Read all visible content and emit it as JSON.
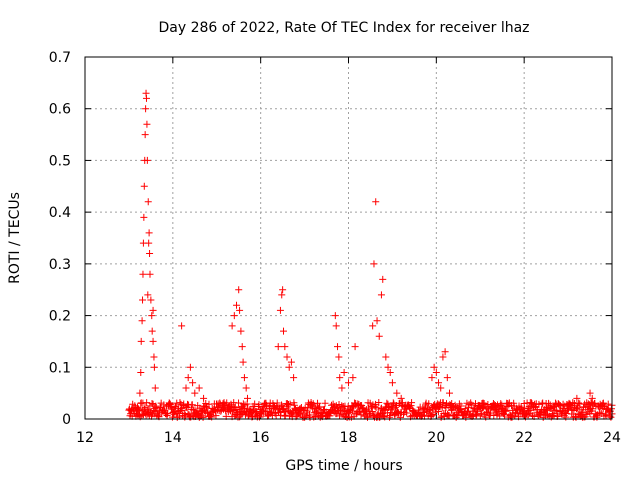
{
  "chart_data": {
    "type": "scatter",
    "title": "Day 286 of 2022, Rate Of TEC Index for receiver lhaz",
    "xlabel": "GPS time / hours",
    "ylabel": "ROTI / TECUs",
    "xlim": [
      12,
      24
    ],
    "ylim": [
      0,
      0.7
    ],
    "grid": true,
    "marker": "+",
    "series_color": "#ff0000",
    "x_ticks": [
      12,
      14,
      16,
      18,
      20,
      22,
      24
    ],
    "x_tick_labels": [
      "12",
      "14",
      "16",
      "18",
      "20",
      "22",
      "24"
    ],
    "y_ticks": [
      0,
      0.1,
      0.2,
      0.3,
      0.4,
      0.5,
      0.6,
      0.7
    ],
    "y_tick_labels": [
      "0",
      "0.1",
      "0.2",
      "0.3",
      "0.4",
      "0.5",
      "0.6",
      "0.7"
    ],
    "series": [
      {
        "name": "ROTI",
        "points": [
          [
            13.2,
            0.02
          ],
          [
            13.25,
            0.05
          ],
          [
            13.27,
            0.09
          ],
          [
            13.28,
            0.15
          ],
          [
            13.3,
            0.19
          ],
          [
            13.31,
            0.23
          ],
          [
            13.32,
            0.28
          ],
          [
            13.33,
            0.34
          ],
          [
            13.34,
            0.39
          ],
          [
            13.35,
            0.45
          ],
          [
            13.36,
            0.5
          ],
          [
            13.37,
            0.55
          ],
          [
            13.38,
            0.6
          ],
          [
            13.39,
            0.63
          ],
          [
            13.4,
            0.62
          ],
          [
            13.41,
            0.57
          ],
          [
            13.42,
            0.5
          ],
          [
            13.44,
            0.42
          ],
          [
            13.46,
            0.36
          ],
          [
            13.47,
            0.32
          ],
          [
            13.48,
            0.28
          ],
          [
            13.5,
            0.23
          ],
          [
            13.52,
            0.2
          ],
          [
            13.53,
            0.17
          ],
          [
            13.55,
            0.15
          ],
          [
            13.57,
            0.12
          ],
          [
            13.58,
            0.1
          ],
          [
            13.6,
            0.06
          ],
          [
            13.45,
            0.34
          ],
          [
            13.43,
            0.24
          ],
          [
            13.55,
            0.21
          ],
          [
            14.2,
            0.18
          ],
          [
            14.3,
            0.06
          ],
          [
            14.35,
            0.08
          ],
          [
            14.4,
            0.1
          ],
          [
            14.45,
            0.07
          ],
          [
            14.5,
            0.05
          ],
          [
            14.6,
            0.06
          ],
          [
            14.7,
            0.04
          ],
          [
            15.35,
            0.18
          ],
          [
            15.4,
            0.2
          ],
          [
            15.45,
            0.22
          ],
          [
            15.5,
            0.25
          ],
          [
            15.52,
            0.21
          ],
          [
            15.55,
            0.17
          ],
          [
            15.58,
            0.14
          ],
          [
            15.6,
            0.11
          ],
          [
            15.63,
            0.08
          ],
          [
            15.67,
            0.06
          ],
          [
            15.7,
            0.04
          ],
          [
            16.4,
            0.14
          ],
          [
            16.45,
            0.21
          ],
          [
            16.48,
            0.24
          ],
          [
            16.5,
            0.25
          ],
          [
            16.52,
            0.17
          ],
          [
            16.55,
            0.14
          ],
          [
            16.6,
            0.12
          ],
          [
            16.65,
            0.1
          ],
          [
            16.7,
            0.11
          ],
          [
            16.75,
            0.08
          ],
          [
            17.7,
            0.2
          ],
          [
            17.72,
            0.18
          ],
          [
            17.75,
            0.14
          ],
          [
            17.78,
            0.12
          ],
          [
            17.8,
            0.08
          ],
          [
            17.85,
            0.06
          ],
          [
            17.9,
            0.09
          ],
          [
            18.0,
            0.07
          ],
          [
            18.1,
            0.08
          ],
          [
            18.15,
            0.14
          ],
          [
            18.55,
            0.18
          ],
          [
            18.58,
            0.3
          ],
          [
            18.62,
            0.42
          ],
          [
            18.65,
            0.19
          ],
          [
            18.7,
            0.16
          ],
          [
            18.75,
            0.24
          ],
          [
            18.78,
            0.27
          ],
          [
            18.85,
            0.12
          ],
          [
            18.9,
            0.1
          ],
          [
            18.95,
            0.09
          ],
          [
            19.0,
            0.07
          ],
          [
            19.1,
            0.05
          ],
          [
            19.2,
            0.04
          ],
          [
            19.9,
            0.08
          ],
          [
            19.95,
            0.1
          ],
          [
            20.0,
            0.09
          ],
          [
            20.05,
            0.07
          ],
          [
            20.1,
            0.06
          ],
          [
            20.15,
            0.12
          ],
          [
            20.2,
            0.13
          ],
          [
            20.25,
            0.08
          ],
          [
            20.3,
            0.05
          ],
          [
            20.35,
            0.03
          ],
          [
            20.5,
            0.02
          ],
          [
            21.0,
            0.02
          ],
          [
            21.3,
            0.03
          ],
          [
            21.5,
            0.02
          ],
          [
            22.0,
            0.03
          ],
          [
            22.1,
            0.02
          ],
          [
            22.5,
            0.03
          ],
          [
            23.0,
            0.02
          ],
          [
            23.2,
            0.04
          ],
          [
            23.5,
            0.05
          ],
          [
            23.55,
            0.04
          ],
          [
            23.6,
            0.03
          ],
          [
            23.8,
            0.02
          ],
          [
            24.0,
            0.01
          ]
        ],
        "baseline": {
          "x_range": [
            13.0,
            24.0
          ],
          "y_range": [
            0.003,
            0.032
          ],
          "note": "dense background of points near zero across the observed interval"
        }
      }
    ]
  }
}
